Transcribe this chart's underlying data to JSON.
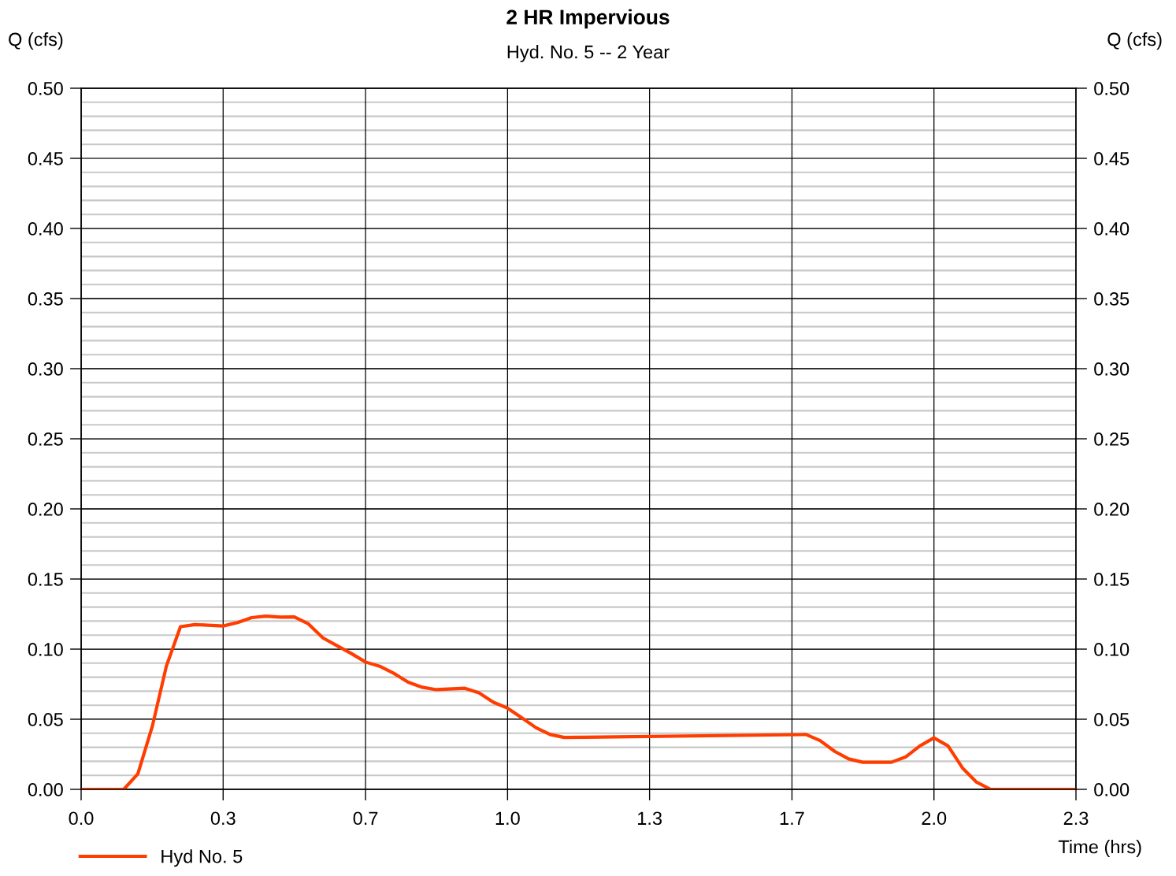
{
  "chart_data": {
    "type": "line",
    "title": "2 HR Impervious",
    "subtitle": "Hyd. No. 5 -- 2 Year",
    "ylabel": "Q (cfs)",
    "y2label": "Q (cfs)",
    "xlabel": "Time (hrs)",
    "x": [
      0,
      0.1,
      0.133,
      0.167,
      0.2,
      0.233,
      0.267,
      0.333,
      0.367,
      0.4,
      0.433,
      0.467,
      0.5,
      0.533,
      0.567,
      0.6,
      0.633,
      0.667,
      0.7,
      0.733,
      0.767,
      0.8,
      0.833,
      0.9,
      0.933,
      0.967,
      1.0,
      1.033,
      1.067,
      1.1,
      1.133,
      1.7,
      1.733,
      1.767,
      1.8,
      1.833,
      1.9,
      1.933,
      1.967,
      2.0,
      2.033,
      2.067,
      2.1,
      2.133,
      2.333
    ],
    "series": [
      {
        "name": "Hyd No. 5",
        "color": "#ff3d00",
        "values": [
          0,
          0,
          0.011,
          0.045,
          0.088,
          0.116,
          0.1175,
          0.1165,
          0.119,
          0.1225,
          0.1235,
          0.1228,
          0.123,
          0.118,
          0.108,
          0.1025,
          0.097,
          0.0908,
          0.0878,
          0.0828,
          0.0764,
          0.0728,
          0.0711,
          0.0721,
          0.0688,
          0.0621,
          0.0579,
          0.0511,
          0.0439,
          0.0391,
          0.037,
          0.0391,
          0.0348,
          0.0271,
          0.0217,
          0.0193,
          0.0193,
          0.023,
          0.031,
          0.0367,
          0.031,
          0.0152,
          0.0051,
          0,
          0
        ]
      }
    ],
    "xlim": [
      0,
      2.333
    ],
    "xticks": [
      {
        "value": 0,
        "label": "0.0"
      },
      {
        "value": 0.333,
        "label": "0.3"
      },
      {
        "value": 0.667,
        "label": "0.7"
      },
      {
        "value": 1,
        "label": "1.0"
      },
      {
        "value": 1.333,
        "label": "1.3"
      },
      {
        "value": 1.667,
        "label": "1.7"
      },
      {
        "value": 2,
        "label": "2.0"
      },
      {
        "value": 2.333,
        "label": "2.3"
      }
    ],
    "ylim": [
      0,
      0.5
    ],
    "yticks": [
      {
        "value": 0,
        "label": "0.00"
      },
      {
        "value": 0.05,
        "label": "0.05"
      },
      {
        "value": 0.1,
        "label": "0.10"
      },
      {
        "value": 0.15,
        "label": "0.15"
      },
      {
        "value": 0.2,
        "label": "0.20"
      },
      {
        "value": 0.25,
        "label": "0.25"
      },
      {
        "value": 0.3,
        "label": "0.30"
      },
      {
        "value": 0.35,
        "label": "0.35"
      },
      {
        "value": 0.4,
        "label": "0.40"
      },
      {
        "value": 0.45,
        "label": "0.45"
      },
      {
        "value": 0.5,
        "label": "0.50"
      }
    ],
    "y2lim": [
      0,
      0.5
    ],
    "y2ticks": [
      {
        "value": 0,
        "label": "0.00"
      },
      {
        "value": 0.05,
        "label": "0.05"
      },
      {
        "value": 0.1,
        "label": "0.10"
      },
      {
        "value": 0.15,
        "label": "0.15"
      },
      {
        "value": 0.2,
        "label": "0.20"
      },
      {
        "value": 0.25,
        "label": "0.25"
      },
      {
        "value": 0.3,
        "label": "0.30"
      },
      {
        "value": 0.35,
        "label": "0.35"
      },
      {
        "value": 0.4,
        "label": "0.40"
      },
      {
        "value": 0.45,
        "label": "0.45"
      },
      {
        "value": 0.5,
        "label": "0.50"
      }
    ],
    "grid": true,
    "legend": "bottom left",
    "marker": "none",
    "line_style": "solid"
  }
}
